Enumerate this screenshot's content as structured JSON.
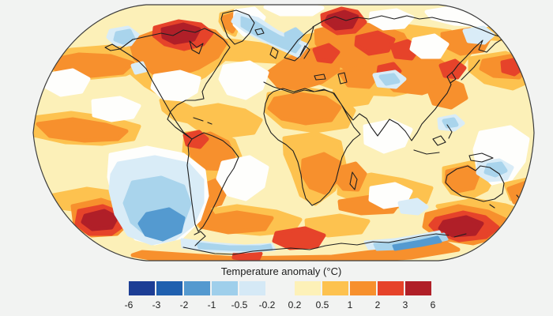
{
  "page": {
    "background_color": "#f2f3f2"
  },
  "map": {
    "name": "Global surface air temperature anomaly world map",
    "projection": "Robinson",
    "outline_color": "#3c3c3c",
    "coastline_color": "#1f1f1f",
    "palette": {
      "base": "#fcf0b8",
      "white": "#fefefc",
      "pb": "#d9ecf7",
      "lb": "#a9d4ec",
      "mb": "#549ad0",
      "y": "#fdc24f",
      "o": "#f7902d",
      "r": "#e6432a",
      "dr": "#b01f28"
    }
  },
  "legend": {
    "title": "Temperature anomaly (°C)",
    "ticks": [
      "-6",
      "-3",
      "-2",
      "-1",
      "-0.5",
      "-0.2",
      "0.2",
      "0.5",
      "1",
      "2",
      "3",
      "6"
    ],
    "cell_colors": [
      "#1d3e95",
      "#2060af",
      "#5499cf",
      "#9fcfeb",
      "#d5e9f6",
      null,
      "#fdf1b8",
      "#fdc24f",
      "#f7902d",
      "#e6432a",
      "#b01f28"
    ]
  },
  "chart_data": {
    "type": "heatmap",
    "title": "Temperature anomaly (°C)",
    "units": "°C",
    "legend_bin_edges": [
      -6,
      -3,
      -2,
      -1,
      -0.5,
      -0.2,
      0.2,
      0.5,
      1,
      2,
      3,
      6
    ],
    "legend_bin_colors": [
      "#1d3e95",
      "#2060af",
      "#5499cf",
      "#9fcfeb",
      "#d5e9f6",
      "none",
      "#fdf1b8",
      "#fdc24f",
      "#f7902d",
      "#e6432a",
      "#b01f28"
    ],
    "legend_position": "bottom center",
    "notable_regions": [
      {
        "region": "Arctic Canada",
        "anomaly_bin": "3 to 6"
      },
      {
        "region": "Northwest Russia / Barents area",
        "anomaly_bin": "3 to 6"
      },
      {
        "region": "Most of Canada, Europe, Siberia, East Asia",
        "anomaly_bin": "1 to 2"
      },
      {
        "region": "Sea near Korea / Japan",
        "anomaly_bin": "2 to 3"
      },
      {
        "region": "North Atlantic southeast of Greenland",
        "anomaly_bin": "-1 to -0.5"
      },
      {
        "region": "Scandinavian mountains",
        "anomaly_bin": "-1 to -0.5"
      },
      {
        "region": "Central and tropical Pacific band",
        "anomaly_bin": "1 to 2"
      },
      {
        "region": "Coastal Peru / western Amazon",
        "anomaly_bin": "2 to 3"
      },
      {
        "region": "Southeast Pacific / Southern Ocean west of Chile",
        "anomaly_bin": "-2 to -1"
      },
      {
        "region": "Southern Ocean south of Australia",
        "anomaly_bin": "3 to 6"
      },
      {
        "region": "Southern Ocean southwest of South America",
        "anomaly_bin": "3 to 6"
      },
      {
        "region": "Antarctic coastal strips",
        "anomaly_bin": "-1 to -0.5"
      },
      {
        "region": "Eastern interior Australia",
        "anomaly_bin": "-0.5 to -0.2"
      },
      {
        "region": "Central United States",
        "anomaly_bin": "-0.2 to 0.2"
      },
      {
        "region": "India / Southeast Asia / tropical Indian Ocean",
        "anomaly_bin": "0.2 to 0.5"
      }
    ]
  }
}
